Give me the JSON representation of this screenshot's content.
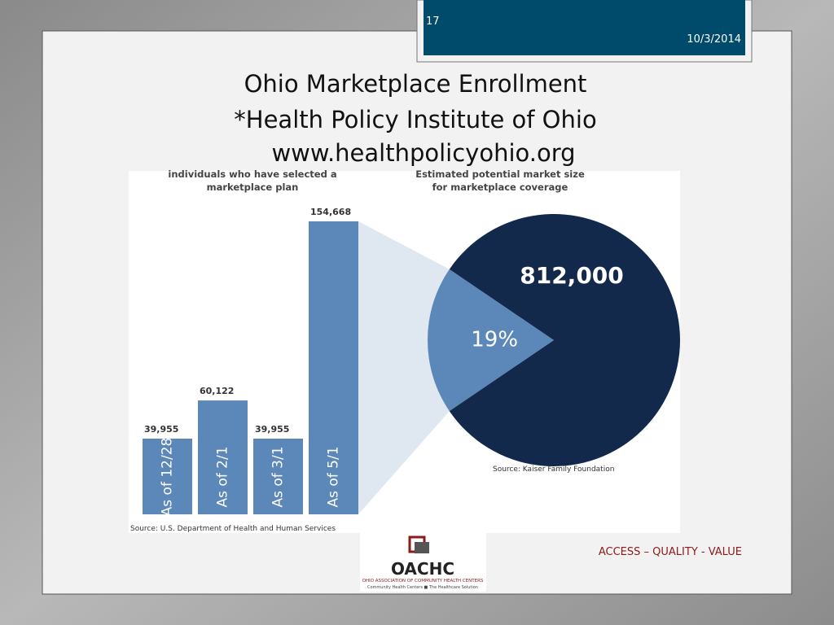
{
  "slide_number": "17",
  "date": "10/3/2014",
  "title_lines": [
    "Ohio Marketplace Enrollment",
    "*Health Policy Institute of Ohio",
    "www.healthpolicyohio.org"
  ],
  "footer": "ACCESS – QUALITY - VALUE",
  "logo": {
    "name": "OACHC",
    "full_name": "OHIO ASSOCIATION OF COMMUNITY HEALTH CENTERS",
    "tagline": "Community Health Centers ■ The Healthcare Solution"
  },
  "chart_data": [
    {
      "type": "bar",
      "title_lines": [
        "individuals who have selected a",
        "marketplace plan"
      ],
      "categories": [
        "As of 12/28",
        "As of 2/1",
        "As of 3/1",
        "As of 5/1"
      ],
      "values": [
        39955,
        60122,
        39955,
        154668
      ],
      "value_labels": [
        "39,955",
        "60,122",
        "39,955",
        "154,668"
      ],
      "color": "#5b88b9",
      "source": "Source: U.S. Department of Health and Human Services"
    },
    {
      "type": "pie",
      "title_lines": [
        "Estimated potential market size",
        "for marketplace coverage"
      ],
      "values": [
        19,
        81
      ],
      "value_labels": [
        "19%",
        null
      ],
      "colors": [
        "#5b88b9",
        "#13294b"
      ],
      "total": 812000,
      "total_label": "812,000",
      "source": "Source: Kaiser Family Foundation"
    }
  ]
}
